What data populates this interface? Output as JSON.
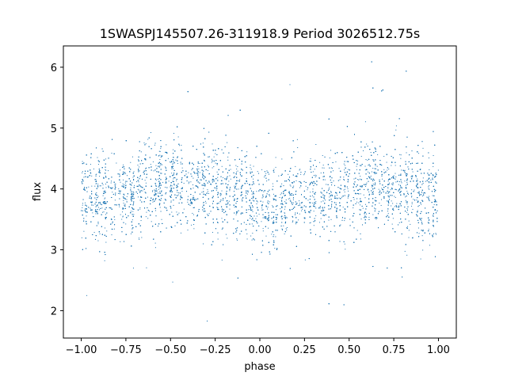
{
  "chart_data": {
    "type": "scatter",
    "title": "1SWASPJ145507.26-311918.9 Period 3026512.75s",
    "xlabel": "phase",
    "ylabel": "flux",
    "xlim": [
      -1.1,
      1.1
    ],
    "ylim": [
      1.55,
      6.35
    ],
    "xticks": [
      -1.0,
      -0.75,
      -0.5,
      -0.25,
      0.0,
      0.25,
      0.5,
      0.75,
      1.0
    ],
    "xtick_labels": [
      "−1.00",
      "−0.75",
      "−0.50",
      "−0.25",
      "0.00",
      "0.25",
      "0.50",
      "0.75",
      "1.00"
    ],
    "yticks": [
      2,
      3,
      4,
      5,
      6
    ],
    "ytick_labels": [
      "2",
      "3",
      "4",
      "5",
      "6"
    ],
    "grid": false,
    "point_color": "#1f77b4",
    "series": [
      {
        "x_range": [
          -1.0,
          1.0
        ],
        "baseline_flux_profile": {
          "phase": [
            -1.0,
            -0.75,
            -0.5,
            -0.25,
            0.0,
            0.25,
            0.5,
            0.75,
            1.0
          ],
          "median_flux": [
            3.85,
            3.9,
            4.05,
            4.0,
            3.75,
            3.85,
            4.0,
            4.05,
            3.85
          ]
        },
        "flux_extent": [
          1.75,
          6.1
        ],
        "typical_spread": 0.45
      }
    ]
  }
}
